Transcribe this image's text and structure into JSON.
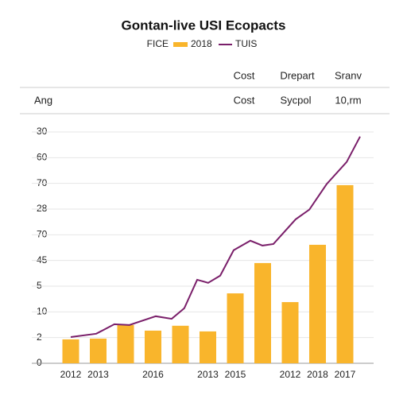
{
  "chart_data": {
    "type": "bar",
    "title": "Gontan-live USI Ecopacts",
    "legend_title": "FICE",
    "table": {
      "header": [
        "Cost",
        "Drepart",
        "Sranv"
      ],
      "rows": [
        [
          "Ang",
          "Cost",
          "Sycpol",
          "10,rm"
        ]
      ]
    },
    "categories": [
      "2012",
      "2013",
      null,
      "2016",
      null,
      "2013",
      "2015",
      null,
      "2012",
      "2018",
      "2017"
    ],
    "series": [
      {
        "name": "2018",
        "type": "bar",
        "color": "#f9b52c",
        "values": [
          0.93,
          0.96,
          1.49,
          1.27,
          1.46,
          1.24,
          2.72,
          3.9,
          2.38,
          4.61,
          6.93
        ]
      },
      {
        "name": "TUIS",
        "type": "line",
        "color": "#7a1f6a",
        "x": [
          0,
          0.93,
          1.59,
          2.14,
          3.1,
          3.68,
          4.14,
          4.61,
          5.01,
          5.45,
          5.94,
          6.55,
          6.99,
          7.39,
          8.2,
          8.7,
          9.33,
          10.06,
          10.55
        ],
        "values": [
          1.02,
          1.15,
          1.52,
          1.49,
          1.83,
          1.73,
          2.14,
          3.25,
          3.13,
          3.41,
          4.4,
          4.77,
          4.58,
          4.64,
          5.6,
          5.98,
          6.97,
          7.83,
          8.82
        ]
      }
    ],
    "ylim": [
      0,
      9
    ],
    "yticks": [
      {
        "value": 0,
        "label": "0"
      },
      {
        "value": 1,
        "label": "2"
      },
      {
        "value": 2,
        "label": "10"
      },
      {
        "value": 3,
        "label": "5"
      },
      {
        "value": 4,
        "label": "45"
      },
      {
        "value": 5,
        "label": "70"
      },
      {
        "value": 6,
        "label": "28"
      },
      {
        "value": 7,
        "label": "70"
      },
      {
        "value": 8,
        "label": "60"
      },
      {
        "value": 9,
        "label": "30"
      }
    ],
    "grid": true
  }
}
